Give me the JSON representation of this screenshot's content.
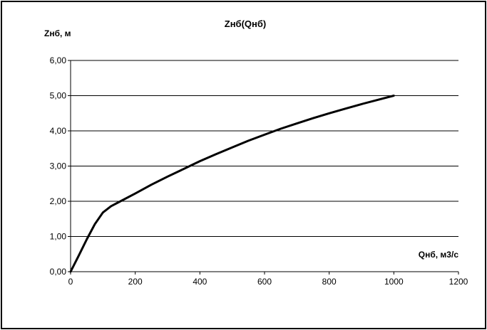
{
  "chart_data": {
    "type": "line",
    "title": "Zнб(Qнб)",
    "xlabel": "Qнб, м3/с",
    "ylabel": "Zнб, м",
    "xlim": [
      0,
      1200
    ],
    "ylim": [
      0,
      6
    ],
    "x_ticks": [
      "0",
      "200",
      "400",
      "600",
      "800",
      "1000",
      "1200"
    ],
    "y_ticks": [
      "0,00",
      "1,00",
      "2,00",
      "3,00",
      "4,00",
      "5,00",
      "6,00"
    ],
    "grid": "horizontal",
    "legend": "none",
    "series": [
      {
        "color": "#000000",
        "x": [
          0,
          25,
          50,
          75,
          100,
          125,
          150,
          200,
          250,
          300,
          350,
          400,
          450,
          500,
          550,
          600,
          650,
          700,
          750,
          800,
          850,
          900,
          950,
          1000
        ],
        "y": [
          0.0,
          0.45,
          0.92,
          1.35,
          1.68,
          1.86,
          1.98,
          2.22,
          2.47,
          2.7,
          2.92,
          3.14,
          3.34,
          3.53,
          3.72,
          3.89,
          4.06,
          4.21,
          4.36,
          4.5,
          4.63,
          4.76,
          4.88,
          5.0
        ]
      }
    ]
  }
}
